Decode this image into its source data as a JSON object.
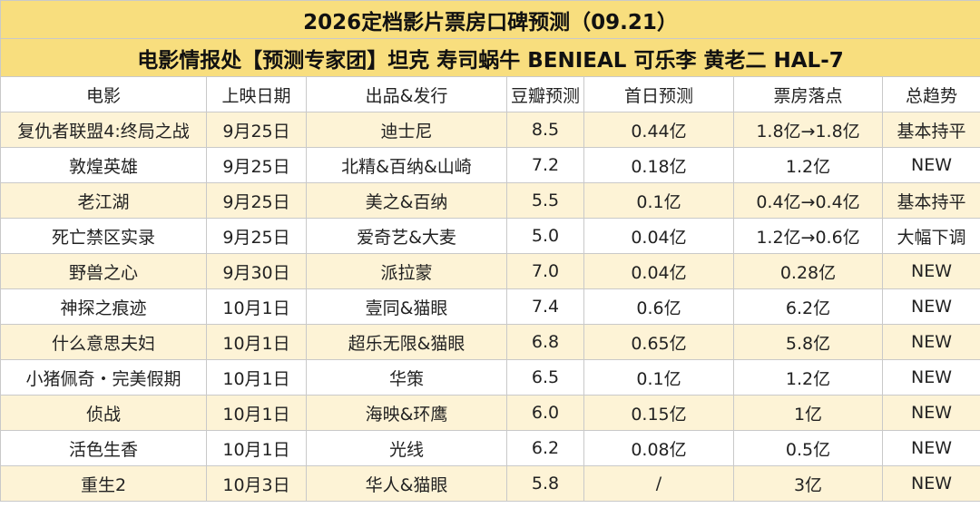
{
  "table": {
    "title": "2026定档影片票房口碑预测（09.21）",
    "subtitle": "电影情报处【预测专家团】坦克 寿司蜗牛 BENIEAL 可乐李 黄老二 HAL-7",
    "columns": [
      "电影",
      "上映日期",
      "出品&发行",
      "豆瓣预测",
      "首日预测",
      "票房落点",
      "总趋势"
    ],
    "rows": [
      [
        "复仇者联盟4:终局之战",
        "9月25日",
        "迪士尼",
        "8.5",
        "0.44亿",
        "1.8亿→1.8亿",
        "基本持平"
      ],
      [
        "敦煌英雄",
        "9月25日",
        "北精&百纳&山崎",
        "7.2",
        "0.18亿",
        "1.2亿",
        "NEW"
      ],
      [
        "老江湖",
        "9月25日",
        "美之&百纳",
        "5.5",
        "0.1亿",
        "0.4亿→0.4亿",
        "基本持平"
      ],
      [
        "死亡禁区实录",
        "9月25日",
        "爱奇艺&大麦",
        "5.0",
        "0.04亿",
        "1.2亿→0.6亿",
        "大幅下调"
      ],
      [
        "野兽之心",
        "9月30日",
        "派拉蒙",
        "7.0",
        "0.04亿",
        "0.28亿",
        "NEW"
      ],
      [
        "神探之痕迹",
        "10月1日",
        "壹同&猫眼",
        "7.4",
        "0.6亿",
        "6.2亿",
        "NEW"
      ],
      [
        "什么意思夫妇",
        "10月1日",
        "超乐无限&猫眼",
        "6.8",
        "0.65亿",
        "5.8亿",
        "NEW"
      ],
      [
        "小猪佩奇・完美假期",
        "10月1日",
        "华策",
        "6.5",
        "0.1亿",
        "1.2亿",
        "NEW"
      ],
      [
        "侦战",
        "10月1日",
        "海映&环鹰",
        "6.0",
        "0.15亿",
        "1亿",
        "NEW"
      ],
      [
        "活色生香",
        "10月1日",
        "光线",
        "6.2",
        "0.08亿",
        "0.5亿",
        "NEW"
      ],
      [
        "重生2",
        "10月3日",
        "华人&猫眼",
        "5.8",
        "/",
        "3亿",
        "NEW"
      ]
    ]
  }
}
